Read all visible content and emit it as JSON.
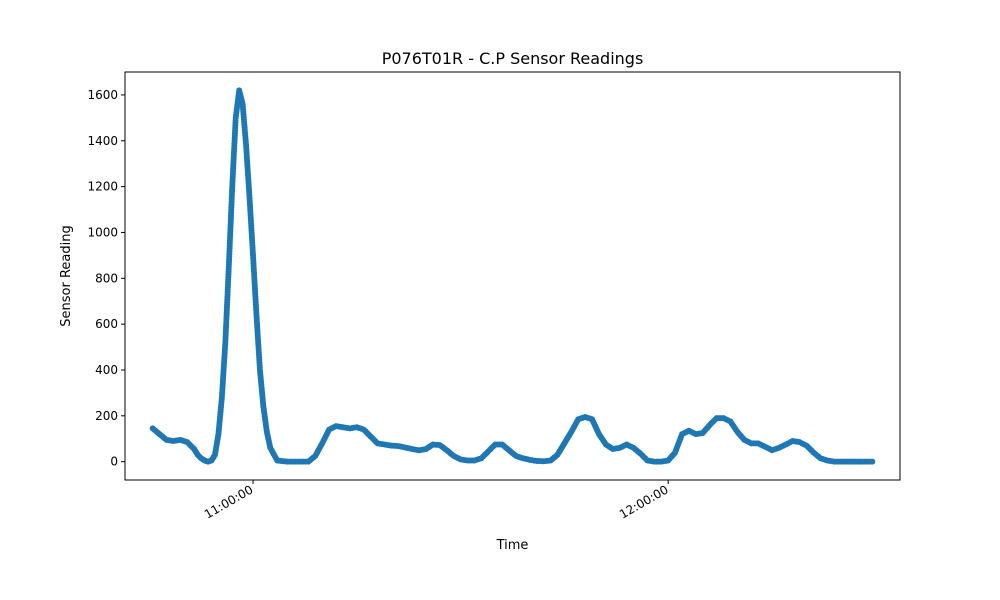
{
  "chart_data": {
    "type": "scatter",
    "title": "P076T01R - C.P Sensor Readings",
    "xlabel": "Time",
    "ylabel": "Sensor Reading",
    "grid": false,
    "legend": "none",
    "marker_color": "#1f77b4",
    "xlim": [
      "10:41:30",
      "12:33:30"
    ],
    "ylim": [
      -80,
      1700
    ],
    "x_ticks": [
      "11:00:00",
      "12:00:00"
    ],
    "y_ticks": [
      0,
      200,
      400,
      600,
      800,
      1000,
      1200,
      1400,
      1600
    ],
    "series": [
      {
        "x": [
          "10:45:30",
          "10:46:30",
          "10:47:30",
          "10:48:30",
          "10:49:30",
          "10:50:30",
          "10:51:30",
          "10:52:00",
          "10:52:30",
          "10:53:00",
          "10:53:30",
          "10:54:00",
          "10:54:30",
          "10:55:00",
          "10:55:30",
          "10:56:00",
          "10:56:30",
          "10:57:00",
          "10:57:30",
          "10:58:00",
          "10:58:30",
          "10:59:00",
          "10:59:30",
          "11:00:00",
          "11:00:30",
          "11:01:00",
          "11:01:30",
          "11:02:00",
          "11:02:30",
          "11:03:30",
          "11:05:00",
          "11:06:30",
          "11:08:00",
          "11:09:00",
          "11:10:00",
          "11:11:00",
          "11:12:00",
          "11:13:00",
          "11:14:00",
          "11:15:00",
          "11:16:00",
          "11:17:00",
          "11:18:00",
          "11:19:00",
          "11:20:00",
          "11:21:00",
          "11:22:00",
          "11:23:00",
          "11:24:00",
          "11:25:00",
          "11:26:00",
          "11:27:00",
          "11:28:00",
          "11:29:00",
          "11:30:00",
          "11:31:00",
          "11:32:00",
          "11:33:00",
          "11:34:00",
          "11:35:00",
          "11:36:00",
          "11:37:00",
          "11:38:00",
          "11:39:00",
          "11:40:00",
          "11:41:00",
          "11:42:00",
          "11:43:00",
          "11:44:00",
          "11:45:00",
          "11:46:00",
          "11:47:00",
          "11:48:00",
          "11:49:00",
          "11:50:00",
          "11:51:00",
          "11:52:00",
          "11:53:00",
          "11:54:00",
          "11:55:00",
          "11:56:00",
          "11:57:00",
          "11:58:00",
          "11:59:00",
          "12:00:00",
          "12:01:00",
          "12:02:00",
          "12:03:00",
          "12:04:00",
          "12:05:00",
          "12:06:00",
          "12:07:00",
          "12:08:00",
          "12:09:00",
          "12:10:00",
          "12:11:00",
          "12:12:00",
          "12:13:00",
          "12:14:00",
          "12:15:00",
          "12:16:00",
          "12:17:00",
          "12:18:00",
          "12:19:00",
          "12:20:00",
          "12:21:00",
          "12:22:00",
          "12:23:00",
          "12:24:00",
          "12:25:00",
          "12:26:00",
          "12:27:00",
          "12:28:00",
          "12:29:30"
        ],
        "y": [
          145,
          120,
          95,
          90,
          95,
          85,
          55,
          30,
          15,
          5,
          0,
          5,
          30,
          120,
          280,
          520,
          850,
          1200,
          1500,
          1620,
          1560,
          1380,
          1150,
          900,
          640,
          400,
          240,
          130,
          60,
          5,
          0,
          0,
          0,
          25,
          80,
          140,
          155,
          150,
          145,
          150,
          140,
          110,
          80,
          75,
          70,
          68,
          62,
          55,
          50,
          55,
          75,
          72,
          50,
          25,
          10,
          5,
          5,
          15,
          45,
          75,
          75,
          50,
          25,
          15,
          8,
          3,
          2,
          5,
          30,
          80,
          130,
          185,
          195,
          185,
          120,
          75,
          55,
          60,
          75,
          60,
          35,
          5,
          0,
          0,
          5,
          40,
          120,
          135,
          120,
          125,
          160,
          190,
          190,
          175,
          130,
          95,
          80,
          80,
          65,
          50,
          60,
          75,
          90,
          85,
          70,
          40,
          15,
          5,
          0,
          0,
          0,
          0,
          0,
          0
        ]
      }
    ]
  }
}
